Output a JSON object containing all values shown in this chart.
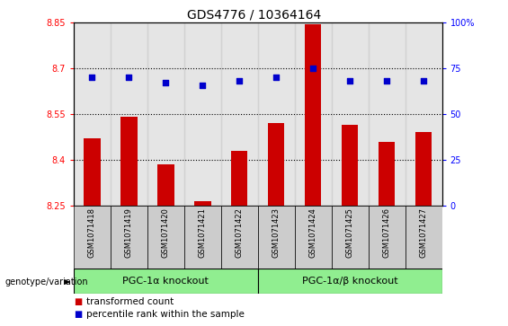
{
  "title": "GDS4776 / 10364164",
  "samples": [
    "GSM1071418",
    "GSM1071419",
    "GSM1071420",
    "GSM1071421",
    "GSM1071422",
    "GSM1071423",
    "GSM1071424",
    "GSM1071425",
    "GSM1071426",
    "GSM1071427"
  ],
  "bar_values": [
    8.47,
    8.54,
    8.385,
    8.265,
    8.43,
    8.52,
    8.845,
    8.515,
    8.46,
    8.49
  ],
  "dot_values": [
    70,
    70,
    67,
    66,
    68,
    70,
    75,
    68,
    68,
    68
  ],
  "bar_color": "#cc0000",
  "dot_color": "#0000cc",
  "ylim_left": [
    8.25,
    8.85
  ],
  "ylim_right": [
    0,
    100
  ],
  "yticks_left": [
    8.25,
    8.4,
    8.55,
    8.7,
    8.85
  ],
  "ytick_labels_left": [
    "8.25",
    "8.4",
    "8.55",
    "8.7",
    "8.85"
  ],
  "yticks_right": [
    0,
    25,
    50,
    75,
    100
  ],
  "ytick_labels_right": [
    "0",
    "25",
    "50",
    "75",
    "100%"
  ],
  "hlines": [
    8.4,
    8.55,
    8.7
  ],
  "group1_label": "PGC-1α knockout",
  "group2_label": "PGC-1α/β knockout",
  "group1_indices": [
    0,
    1,
    2,
    3,
    4
  ],
  "group2_indices": [
    5,
    6,
    7,
    8,
    9
  ],
  "group_label_prefix": "genotype/variation",
  "legend_bar_label": "transformed count",
  "legend_dot_label": "percentile rank within the sample",
  "background_color": "#ffffff",
  "tick_area_color": "#cccccc",
  "group_box_color": "#90ee90",
  "title_fontsize": 10,
  "tick_fontsize": 7,
  "sample_fontsize": 6,
  "group_fontsize": 8,
  "legend_fontsize": 7.5
}
